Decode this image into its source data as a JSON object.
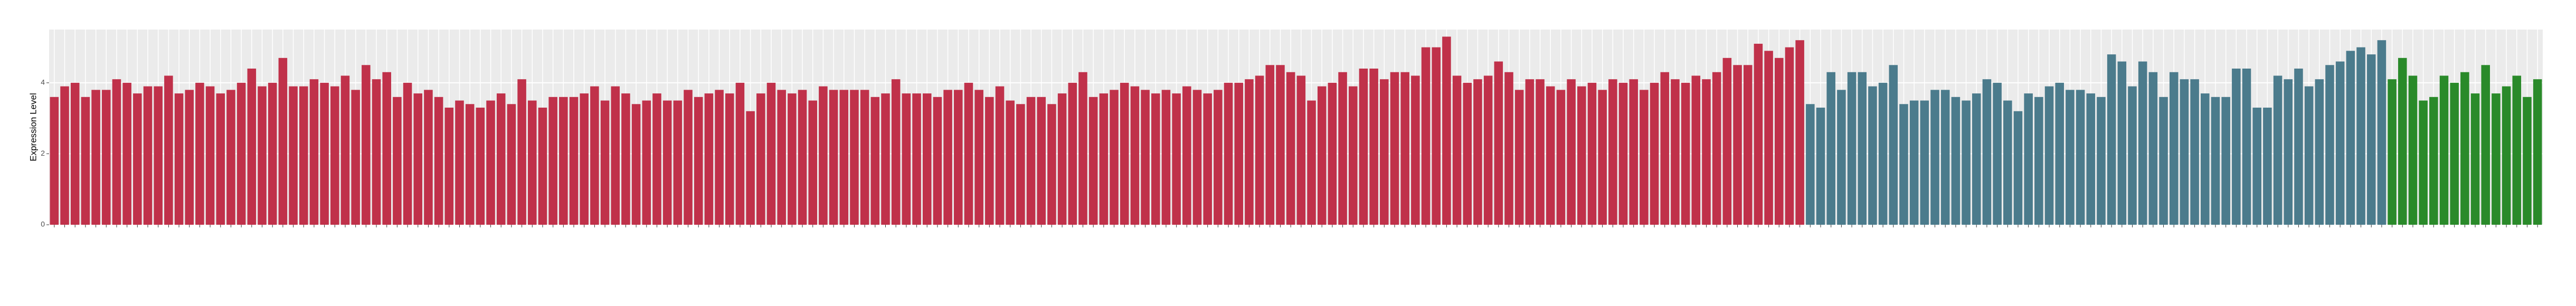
{
  "chart_data": {
    "type": "bar",
    "y_label": "Expression Level",
    "categories": [
      null,
      null,
      null,
      null,
      null,
      null,
      null,
      null,
      null,
      null,
      null,
      null,
      null,
      null,
      null,
      null,
      null,
      null,
      null,
      null,
      null,
      null,
      null,
      null,
      null,
      null,
      null,
      null,
      null,
      null,
      null,
      null,
      null,
      null,
      null,
      null,
      null,
      null,
      null,
      null,
      null,
      null,
      null,
      null,
      null,
      null,
      null,
      null,
      null,
      null,
      null,
      null,
      null,
      null,
      null,
      null,
      null,
      null,
      null,
      null,
      null,
      null,
      null,
      null,
      null,
      null,
      null,
      null,
      null,
      null,
      null,
      null,
      null,
      null,
      null,
      null,
      null,
      null,
      null,
      null,
      null,
      null,
      null,
      null,
      null,
      null,
      null,
      null,
      null,
      null,
      null,
      null,
      null,
      null,
      null,
      null,
      null,
      null,
      null,
      null,
      null,
      null,
      null,
      null,
      null,
      null,
      null,
      null,
      null,
      null,
      null,
      null,
      null,
      null,
      null,
      null,
      null,
      null,
      null,
      null,
      null,
      null,
      null,
      null,
      null,
      null,
      null,
      null,
      null,
      null,
      null,
      null,
      null,
      null,
      null,
      null,
      null,
      null,
      null,
      null,
      null,
      null,
      null,
      null,
      null,
      null,
      null,
      null,
      null,
      null,
      null,
      null,
      null,
      null,
      null,
      null,
      null,
      null,
      null,
      null,
      null,
      null,
      null,
      null,
      null,
      null,
      null,
      null,
      null,
      null,
      null,
      null,
      null,
      null,
      null,
      null,
      null,
      null,
      null,
      null,
      null,
      null,
      null,
      null,
      null,
      null,
      null,
      null,
      null,
      null,
      null,
      null,
      null,
      null,
      null,
      null,
      null,
      null,
      null,
      null,
      null,
      null,
      null,
      null,
      null,
      null,
      null,
      null,
      null,
      null,
      null,
      null,
      null,
      null,
      null,
      null,
      null,
      null,
      null,
      null,
      null,
      null,
      null,
      null,
      null,
      null,
      null,
      null,
      null,
      null,
      null,
      null,
      null,
      null,
      null,
      null,
      null,
      null,
      null,
      null
    ],
    "values": [
      3.6,
      3.9,
      4.0,
      3.6,
      3.8,
      3.8,
      4.1,
      4.0,
      3.7,
      3.9,
      3.9,
      4.2,
      3.7,
      3.8,
      4.0,
      3.9,
      3.7,
      3.8,
      4.0,
      4.4,
      3.9,
      4.0,
      4.7,
      3.9,
      3.9,
      4.1,
      4.0,
      3.9,
      4.2,
      3.8,
      4.5,
      4.1,
      4.3,
      3.6,
      4.0,
      3.7,
      3.8,
      3.6,
      3.3,
      3.5,
      3.4,
      3.3,
      3.5,
      3.7,
      3.4,
      4.1,
      3.5,
      3.3,
      3.6,
      3.6,
      3.6,
      3.7,
      3.9,
      3.5,
      3.9,
      3.7,
      3.4,
      3.5,
      3.7,
      3.5,
      3.5,
      3.8,
      3.6,
      3.7,
      3.8,
      3.7,
      4.0,
      3.2,
      3.7,
      4.0,
      3.8,
      3.7,
      3.8,
      3.5,
      3.9,
      3.8,
      3.8,
      3.8,
      3.8,
      3.6,
      3.7,
      4.1,
      3.7,
      3.7,
      3.7,
      3.6,
      3.8,
      3.8,
      4.0,
      3.8,
      3.6,
      3.9,
      3.5,
      3.4,
      3.6,
      3.6,
      3.4,
      3.7,
      4.0,
      4.3,
      3.6,
      3.7,
      3.8,
      4.0,
      3.9,
      3.8,
      3.7,
      3.8,
      3.7,
      3.9,
      3.8,
      3.7,
      3.8,
      4.0,
      4.0,
      4.1,
      4.2,
      4.5,
      4.5,
      4.3,
      4.2,
      3.5,
      3.9,
      4.0,
      4.3,
      3.9,
      4.4,
      4.4,
      4.1,
      4.3,
      4.3,
      4.2,
      5.0,
      5.0,
      5.3,
      4.2,
      4.0,
      4.1,
      4.2,
      4.6,
      4.3,
      3.8,
      4.1,
      4.1,
      3.9,
      3.8,
      4.1,
      3.9,
      4.0,
      3.8,
      4.1,
      4.0,
      4.1,
      3.8,
      4.0,
      4.3,
      4.1,
      4.0,
      4.2,
      4.1,
      4.3,
      4.7,
      4.5,
      4.5,
      5.1,
      4.9,
      4.7,
      5.0,
      5.2,
      3.4,
      3.3,
      4.3,
      3.8,
      4.3,
      4.3,
      3.9,
      4.0,
      4.5,
      3.4,
      3.5,
      3.5,
      3.8,
      3.8,
      3.6,
      3.5,
      3.7,
      4.1,
      4.0,
      3.5,
      3.2,
      3.7,
      3.6,
      3.9,
      4.0,
      3.8,
      3.8,
      3.7,
      3.6,
      4.8,
      4.6,
      3.9,
      4.6,
      4.3,
      3.6,
      4.3,
      4.1,
      4.1,
      3.7,
      3.6,
      3.6,
      4.4,
      4.4,
      3.3,
      3.3,
      4.2,
      4.1,
      4.4,
      3.9,
      4.1,
      4.5,
      4.6,
      4.9,
      5.0,
      4.8,
      5.2,
      4.1,
      4.7,
      4.2,
      3.5,
      3.6,
      4.2,
      4.0,
      4.3,
      3.7,
      4.5,
      3.7,
      3.9,
      4.2,
      3.6,
      4.1
    ],
    "colors": [
      "#c0314a",
      "#c0314a",
      "#c0314a",
      "#c0314a",
      "#c0314a",
      "#c0314a",
      "#c0314a",
      "#c0314a",
      "#c0314a",
      "#c0314a",
      "#c0314a",
      "#c0314a",
      "#c0314a",
      "#c0314a",
      "#c0314a",
      "#c0314a",
      "#c0314a",
      "#c0314a",
      "#c0314a",
      "#c0314a",
      "#c0314a",
      "#c0314a",
      "#c0314a",
      "#c0314a",
      "#c0314a",
      "#c0314a",
      "#c0314a",
      "#c0314a",
      "#c0314a",
      "#c0314a",
      "#c0314a",
      "#c0314a",
      "#c0314a",
      "#c0314a",
      "#c0314a",
      "#c0314a",
      "#c0314a",
      "#c0314a",
      "#c0314a",
      "#c0314a",
      "#c0314a",
      "#c0314a",
      "#c0314a",
      "#c0314a",
      "#c0314a",
      "#c0314a",
      "#c0314a",
      "#c0314a",
      "#c0314a",
      "#c0314a",
      "#c0314a",
      "#c0314a",
      "#c0314a",
      "#c0314a",
      "#c0314a",
      "#c0314a",
      "#c0314a",
      "#c0314a",
      "#c0314a",
      "#c0314a",
      "#c0314a",
      "#c0314a",
      "#c0314a",
      "#c0314a",
      "#c0314a",
      "#c0314a",
      "#c0314a",
      "#c0314a",
      "#c0314a",
      "#c0314a",
      "#c0314a",
      "#c0314a",
      "#c0314a",
      "#c0314a",
      "#c0314a",
      "#c0314a",
      "#c0314a",
      "#c0314a",
      "#c0314a",
      "#c0314a",
      "#c0314a",
      "#c0314a",
      "#c0314a",
      "#c0314a",
      "#c0314a",
      "#c0314a",
      "#c0314a",
      "#c0314a",
      "#c0314a",
      "#c0314a",
      "#c0314a",
      "#c0314a",
      "#c0314a",
      "#c0314a",
      "#c0314a",
      "#c0314a",
      "#c0314a",
      "#c0314a",
      "#c0314a",
      "#c0314a",
      "#c0314a",
      "#c0314a",
      "#c0314a",
      "#c0314a",
      "#c0314a",
      "#c0314a",
      "#c0314a",
      "#c0314a",
      "#c0314a",
      "#c0314a",
      "#c0314a",
      "#c0314a",
      "#c0314a",
      "#c0314a",
      "#c0314a",
      "#c0314a",
      "#c0314a",
      "#c0314a",
      "#c0314a",
      "#c0314a",
      "#c0314a",
      "#c0314a",
      "#c0314a",
      "#c0314a",
      "#c0314a",
      "#c0314a",
      "#c0314a",
      "#c0314a",
      "#c0314a",
      "#c0314a",
      "#c0314a",
      "#c0314a",
      "#c0314a",
      "#c0314a",
      "#c0314a",
      "#c0314a",
      "#c0314a",
      "#c0314a",
      "#c0314a",
      "#c0314a",
      "#c0314a",
      "#c0314a",
      "#c0314a",
      "#c0314a",
      "#c0314a",
      "#c0314a",
      "#c0314a",
      "#c0314a",
      "#c0314a",
      "#c0314a",
      "#c0314a",
      "#c0314a",
      "#c0314a",
      "#c0314a",
      "#c0314a",
      "#c0314a",
      "#c0314a",
      "#c0314a",
      "#c0314a",
      "#c0314a",
      "#c0314a",
      "#c0314a",
      "#c0314a",
      "#c0314a",
      "#c0314a",
      "#c0314a",
      "#c0314a",
      "#c0314a",
      "#c0314a",
      "#4b7b8c",
      "#4b7b8c",
      "#4b7b8c",
      "#4b7b8c",
      "#4b7b8c",
      "#4b7b8c",
      "#4b7b8c",
      "#4b7b8c",
      "#4b7b8c",
      "#4b7b8c",
      "#4b7b8c",
      "#4b7b8c",
      "#4b7b8c",
      "#4b7b8c",
      "#4b7b8c",
      "#4b7b8c",
      "#4b7b8c",
      "#4b7b8c",
      "#4b7b8c",
      "#4b7b8c",
      "#4b7b8c",
      "#4b7b8c",
      "#4b7b8c",
      "#4b7b8c",
      "#4b7b8c",
      "#4b7b8c",
      "#4b7b8c",
      "#4b7b8c",
      "#4b7b8c",
      "#4b7b8c",
      "#4b7b8c",
      "#4b7b8c",
      "#4b7b8c",
      "#4b7b8c",
      "#4b7b8c",
      "#4b7b8c",
      "#4b7b8c",
      "#4b7b8c",
      "#4b7b8c",
      "#4b7b8c",
      "#4b7b8c",
      "#4b7b8c",
      "#4b7b8c",
      "#4b7b8c",
      "#4b7b8c",
      "#4b7b8c",
      "#4b7b8c",
      "#4b7b8c",
      "#4b7b8c",
      "#4b7b8c",
      "#4b7b8c",
      "#4b7b8c",
      "#4b7b8c",
      "#4b7b8c",
      "#4b7b8c",
      "#4b7b8c",
      "#2a8a2a",
      "#2a8a2a",
      "#2a8a2a",
      "#2a8a2a",
      "#2a8a2a",
      "#2a8a2a",
      "#2a8a2a",
      "#2a8a2a",
      "#2a8a2a",
      "#2a8a2a",
      "#2a8a2a",
      "#2a8a2a",
      "#2a8a2a",
      "#2a8a2a",
      "#2a8a2a"
    ],
    "ylim": [
      0,
      5.5
    ],
    "yticks": [
      0,
      2,
      4
    ],
    "grid": true
  }
}
